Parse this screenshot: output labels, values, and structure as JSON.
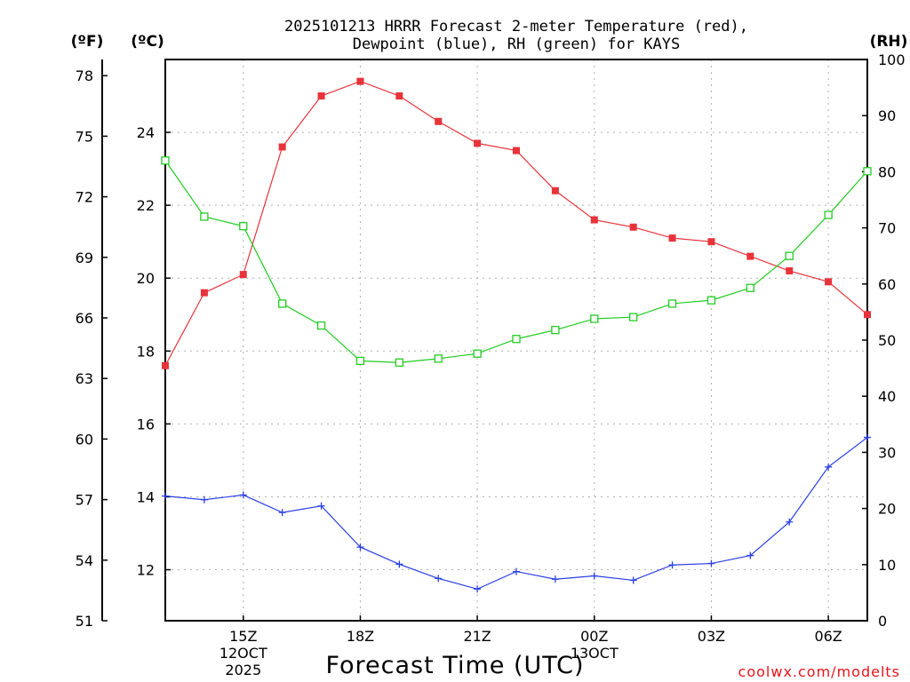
{
  "chart_data": {
    "type": "line",
    "title_line1": "2025101213 HRRR Forecast 2-meter Temperature (red),",
    "title_line2": "Dewpoint (blue), RH (green) for KAYS",
    "xlabel": "Forecast Time (UTC)",
    "credit": "coolwx.com/modelts",
    "units": {
      "fahrenheit": "(ºF)",
      "celsius": "(ºC)",
      "rh": "(RH)"
    },
    "x": [
      0,
      1,
      2,
      3,
      4,
      5,
      6,
      7,
      8,
      9,
      10,
      11,
      12,
      13,
      14,
      15,
      16,
      17,
      18
    ],
    "x_ticks": [
      {
        "x": 2,
        "lines": [
          "15Z",
          "12OCT",
          "2025"
        ]
      },
      {
        "x": 5,
        "lines": [
          "18Z"
        ]
      },
      {
        "x": 8,
        "lines": [
          "21Z"
        ]
      },
      {
        "x": 11,
        "lines": [
          "00Z",
          "13OCT"
        ]
      },
      {
        "x": 14,
        "lines": [
          "03Z"
        ]
      },
      {
        "x": 17,
        "lines": [
          "06Z"
        ]
      }
    ],
    "celsius_axis": {
      "min": 10.6,
      "max": 26.0,
      "ticks": [
        "12",
        "14",
        "16",
        "18",
        "20",
        "22",
        "24"
      ]
    },
    "fahrenheit_axis": {
      "min": 51,
      "max": 78.8,
      "ticks": [
        "51",
        "54",
        "57",
        "60",
        "63",
        "66",
        "69",
        "72",
        "75",
        "78"
      ]
    },
    "rh_axis": {
      "min": 0,
      "max": 100,
      "ticks": [
        "0",
        "10",
        "20",
        "30",
        "40",
        "50",
        "60",
        "70",
        "80",
        "90",
        "100"
      ]
    },
    "series": [
      {
        "name": "Temperature",
        "unit": "C",
        "color": "#e8333a",
        "marker": "filled-square",
        "values": [
          17.6,
          19.6,
          20.1,
          23.6,
          25.0,
          25.4,
          25.0,
          24.3,
          23.7,
          23.5,
          22.4,
          21.6,
          21.4,
          21.1,
          21.0,
          20.6,
          20.2,
          19.9,
          19.0
        ]
      },
      {
        "name": "Dewpoint",
        "unit": "C",
        "color": "#2a3fe6",
        "marker": "plus",
        "values": [
          14.02,
          13.92,
          14.05,
          13.57,
          13.75,
          12.62,
          12.15,
          11.76,
          11.47,
          11.95,
          11.74,
          11.83,
          11.71,
          12.13,
          12.17,
          12.39,
          13.31,
          14.82,
          15.63
        ]
      },
      {
        "name": "RH",
        "unit": "%",
        "color": "#22cc22",
        "marker": "open-square",
        "values": [
          82,
          72,
          70.3,
          56.5,
          52.6,
          46.3,
          46.0,
          46.7,
          47.6,
          50.2,
          51.8,
          53.8,
          54.1,
          56.5,
          57.1,
          59.3,
          65.0,
          72.3,
          80.1
        ]
      }
    ]
  }
}
